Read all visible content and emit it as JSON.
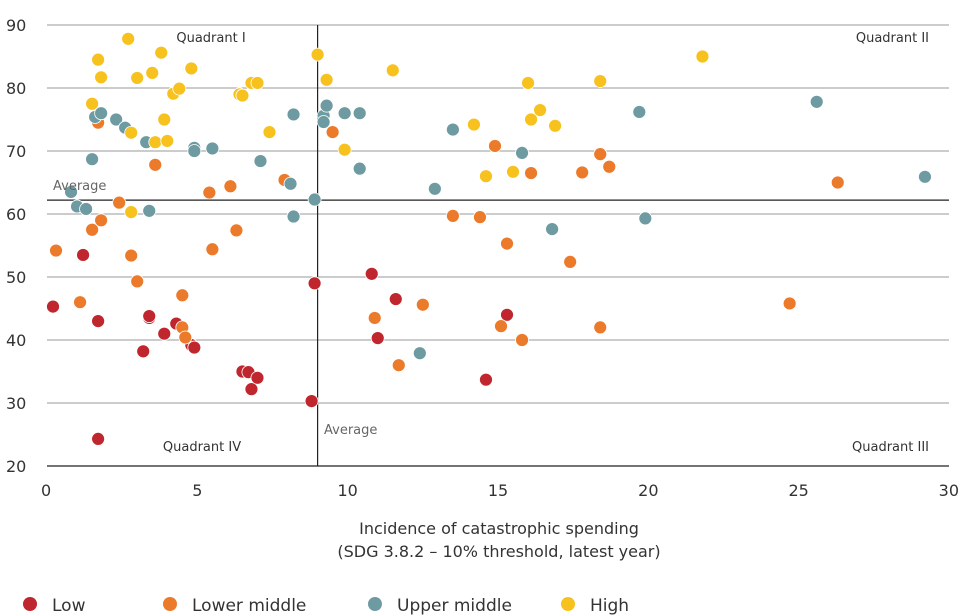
{
  "chart_data": {
    "type": "scatter",
    "title": "",
    "xlabel": "Incidence of catastrophic spending",
    "xlabel_sub": "(SDG 3.8.2 – 10% threshold, latest year)",
    "ylabel": "",
    "xlim": [
      0,
      30
    ],
    "ylim": [
      20,
      90
    ],
    "x_ticks": [
      0,
      5,
      10,
      15,
      20,
      25,
      30
    ],
    "y_ticks": [
      20,
      30,
      40,
      50,
      60,
      70,
      80,
      90
    ],
    "grid": "horizontal",
    "legend_position": "bottom-left",
    "averages": {
      "x": 9.0,
      "y": 62.2,
      "x_label": "Average",
      "y_label": "Average"
    },
    "quadrant_labels": {
      "q1": "Quadrant I",
      "q2": "Quadrant II",
      "q3": "Quadrant III",
      "q4": "Quadrant IV"
    },
    "series": [
      {
        "name": "Low",
        "color": "#c0262d",
        "points": [
          [
            0.2,
            45.3
          ],
          [
            1.2,
            53.5
          ],
          [
            1.7,
            24.3
          ],
          [
            1.7,
            43.0
          ],
          [
            3.2,
            38.2
          ],
          [
            3.4,
            43.5
          ],
          [
            3.4,
            43.8
          ],
          [
            3.9,
            41.0
          ],
          [
            4.3,
            42.6
          ],
          [
            4.8,
            39.2
          ],
          [
            4.9,
            38.8
          ],
          [
            6.5,
            35.0
          ],
          [
            6.7,
            34.9
          ],
          [
            6.8,
            32.2
          ],
          [
            7.0,
            34.0
          ],
          [
            8.8,
            30.3
          ],
          [
            8.9,
            49.0
          ],
          [
            10.8,
            50.5
          ],
          [
            11.0,
            40.3
          ],
          [
            11.6,
            46.5
          ],
          [
            14.6,
            33.7
          ],
          [
            15.3,
            44.0
          ]
        ]
      },
      {
        "name": "Lower middle",
        "color": "#ec7a2b",
        "points": [
          [
            0.3,
            54.2
          ],
          [
            1.1,
            46.0
          ],
          [
            1.5,
            57.5
          ],
          [
            1.7,
            74.5
          ],
          [
            1.8,
            59.0
          ],
          [
            2.4,
            61.8
          ],
          [
            2.8,
            53.4
          ],
          [
            3.0,
            49.3
          ],
          [
            3.6,
            67.8
          ],
          [
            4.5,
            47.1
          ],
          [
            4.5,
            42.0
          ],
          [
            4.6,
            40.4
          ],
          [
            5.4,
            63.4
          ],
          [
            5.5,
            54.4
          ],
          [
            6.1,
            64.4
          ],
          [
            6.3,
            57.4
          ],
          [
            7.9,
            65.4
          ],
          [
            9.5,
            73.0
          ],
          [
            10.9,
            43.5
          ],
          [
            11.7,
            36.0
          ],
          [
            12.5,
            45.6
          ],
          [
            13.5,
            59.7
          ],
          [
            14.4,
            59.5
          ],
          [
            14.9,
            70.8
          ],
          [
            15.1,
            42.2
          ],
          [
            15.3,
            55.3
          ],
          [
            15.8,
            40.0
          ],
          [
            16.1,
            66.5
          ],
          [
            17.4,
            52.4
          ],
          [
            17.8,
            66.6
          ],
          [
            18.4,
            69.5
          ],
          [
            18.4,
            42.0
          ],
          [
            18.7,
            67.5
          ],
          [
            24.7,
            45.8
          ],
          [
            26.3,
            65.0
          ]
        ]
      },
      {
        "name": "Upper middle",
        "color": "#6e9ba2",
        "points": [
          [
            0.8,
            63.5
          ],
          [
            1.0,
            61.2
          ],
          [
            1.3,
            60.8
          ],
          [
            1.5,
            68.7
          ],
          [
            1.6,
            75.4
          ],
          [
            1.8,
            76.0
          ],
          [
            2.3,
            75.0
          ],
          [
            2.6,
            73.7
          ],
          [
            3.3,
            71.4
          ],
          [
            3.4,
            60.5
          ],
          [
            4.9,
            70.5
          ],
          [
            4.9,
            70.0
          ],
          [
            5.5,
            70.4
          ],
          [
            7.1,
            68.4
          ],
          [
            8.1,
            64.8
          ],
          [
            8.2,
            59.6
          ],
          [
            8.2,
            75.8
          ],
          [
            8.9,
            62.3
          ],
          [
            9.2,
            75.6
          ],
          [
            9.2,
            74.6
          ],
          [
            9.3,
            77.2
          ],
          [
            9.9,
            76.0
          ],
          [
            10.4,
            76.0
          ],
          [
            10.4,
            67.2
          ],
          [
            12.4,
            37.9
          ],
          [
            12.9,
            64.0
          ],
          [
            13.5,
            73.4
          ],
          [
            15.8,
            69.7
          ],
          [
            16.8,
            57.6
          ],
          [
            19.7,
            76.2
          ],
          [
            19.9,
            59.3
          ],
          [
            25.6,
            77.8
          ],
          [
            29.2,
            65.9
          ]
        ]
      },
      {
        "name": "High",
        "color": "#f7c11e",
        "points": [
          [
            1.5,
            77.5
          ],
          [
            1.7,
            84.5
          ],
          [
            1.8,
            81.7
          ],
          [
            2.7,
            87.8
          ],
          [
            2.8,
            72.9
          ],
          [
            2.8,
            60.3
          ],
          [
            3.0,
            81.6
          ],
          [
            3.5,
            82.4
          ],
          [
            3.6,
            71.4
          ],
          [
            3.8,
            85.6
          ],
          [
            3.9,
            75.0
          ],
          [
            4.0,
            71.6
          ],
          [
            4.2,
            79.1
          ],
          [
            4.4,
            79.9
          ],
          [
            4.8,
            83.1
          ],
          [
            6.4,
            79.0
          ],
          [
            6.5,
            78.8
          ],
          [
            6.8,
            80.8
          ],
          [
            7.0,
            80.8
          ],
          [
            7.4,
            73.0
          ],
          [
            9.0,
            85.3
          ],
          [
            9.3,
            81.3
          ],
          [
            9.9,
            70.2
          ],
          [
            11.5,
            82.8
          ],
          [
            14.2,
            74.2
          ],
          [
            14.6,
            66.0
          ],
          [
            15.5,
            66.7
          ],
          [
            16.0,
            80.8
          ],
          [
            16.1,
            75.0
          ],
          [
            16.4,
            76.5
          ],
          [
            16.9,
            74.0
          ],
          [
            18.4,
            81.1
          ],
          [
            21.8,
            85.0
          ]
        ]
      }
    ]
  }
}
